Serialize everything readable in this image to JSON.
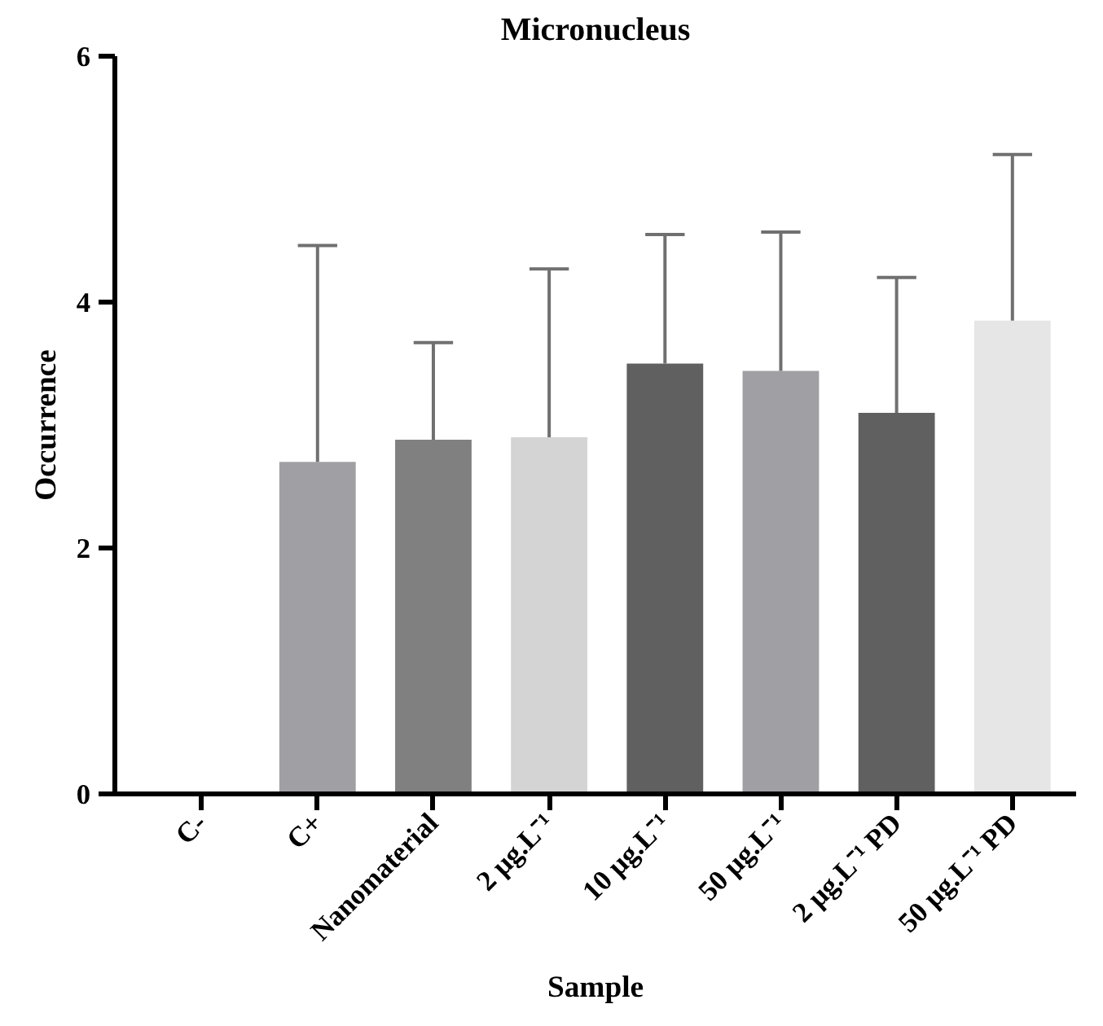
{
  "chart_data": {
    "type": "bar",
    "title": "Micronucleus",
    "xlabel": "Sample",
    "ylabel": "Occurrence",
    "categories": [
      "C-",
      "C+",
      "Nanomaterial",
      "2 μg.L⁻¹",
      "10 μg.L⁻¹",
      "50 μg.L⁻¹",
      "2 μg.L⁻¹ PD",
      "50 μg.L⁻¹ PD"
    ],
    "values": [
      0,
      2.7,
      2.88,
      2.9,
      3.5,
      3.44,
      3.1,
      3.85
    ],
    "errors": [
      null,
      [
        2.7,
        4.46
      ],
      [
        2.88,
        3.67
      ],
      [
        2.9,
        4.27
      ],
      [
        3.5,
        4.55
      ],
      [
        3.44,
        4.57
      ],
      [
        3.1,
        4.2
      ],
      [
        3.85,
        5.2
      ]
    ],
    "colors": [
      "#a0a0a4",
      "#a0a0a4",
      "#808080",
      "#d4d4d4",
      "#606060",
      "#a0a0a4",
      "#606060",
      "#e6e6e6"
    ],
    "ylim": [
      0,
      6
    ],
    "yticks": [
      0,
      2,
      4,
      6
    ],
    "grid": false
  }
}
